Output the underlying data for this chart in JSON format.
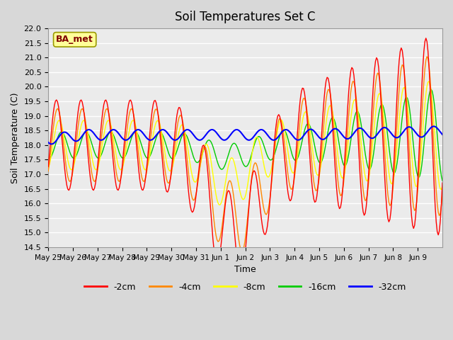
{
  "title": "Soil Temperatures Set C",
  "xlabel": "Time",
  "ylabel": "Soil Temperature (C)",
  "ylim": [
    14.5,
    22.0
  ],
  "colors": {
    "-2cm": "#ff0000",
    "-4cm": "#ff8800",
    "-8cm": "#ffff00",
    "-16cm": "#00cc00",
    "-32cm": "#0000ff"
  },
  "legend_label": "BA_met",
  "legend_box_facecolor": "#ffff99",
  "legend_box_edgecolor": "#999900",
  "legend_text_color": "#800000",
  "fig_bg_color": "#d8d8d8",
  "plot_bg_color": "#ebebeb",
  "grid_color": "#ffffff",
  "xtick_labels": [
    "May 25",
    "May 26",
    "May 27",
    "May 28",
    "May 29",
    "May 30",
    "May 31",
    "Jun 1",
    "Jun 2",
    "Jun 3",
    "Jun 4",
    "Jun 5",
    "Jun 6",
    "Jun 7",
    "Jun 8",
    "Jun 9"
  ],
  "ytick_values": [
    14.5,
    15.0,
    15.5,
    16.0,
    16.5,
    17.0,
    17.5,
    18.0,
    18.5,
    19.0,
    19.5,
    20.0,
    20.5,
    21.0,
    21.5,
    22.0
  ]
}
